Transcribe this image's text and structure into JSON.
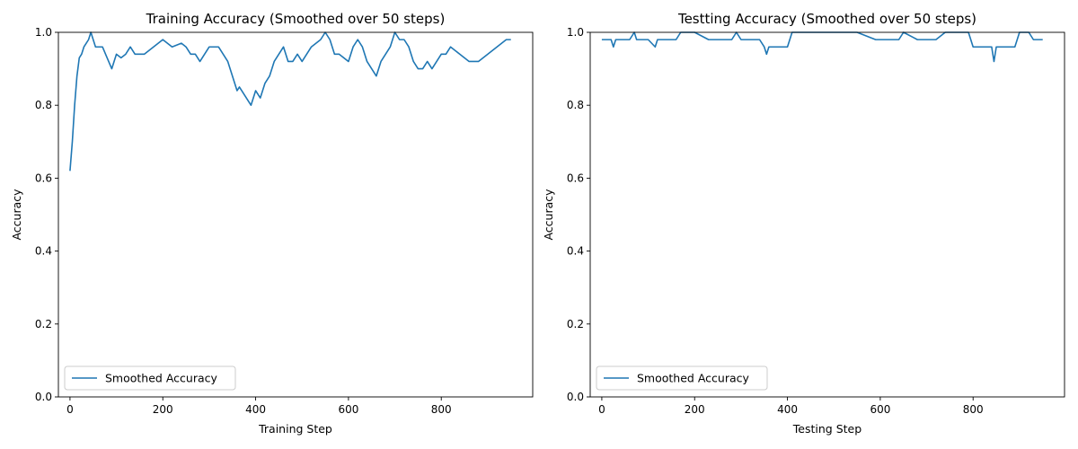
{
  "chart_data": [
    {
      "type": "line",
      "title": "Training Accuracy (Smoothed over 50 steps)",
      "xlabel": "Training Step",
      "ylabel": "Accuracy",
      "xlim": [
        -25,
        997
      ],
      "ylim": [
        0.0,
        1.0
      ],
      "xticks": [
        "0",
        "200",
        "400",
        "600",
        "800"
      ],
      "yticks": [
        "0.0",
        "0.2",
        "0.4",
        "0.6",
        "0.8",
        "1.0"
      ],
      "legend": "lower-left",
      "grid": false,
      "color": "#1f77b4",
      "series": [
        {
          "name": "Smoothed Accuracy",
          "x": [
            0,
            5,
            10,
            15,
            20,
            25,
            30,
            35,
            40,
            45,
            50,
            55,
            60,
            70,
            80,
            90,
            100,
            110,
            120,
            130,
            140,
            160,
            180,
            200,
            220,
            240,
            250,
            260,
            270,
            280,
            290,
            300,
            310,
            320,
            330,
            340,
            350,
            355,
            360,
            365,
            370,
            380,
            390,
            395,
            400,
            410,
            420,
            430,
            440,
            450,
            460,
            470,
            480,
            490,
            500,
            520,
            540,
            550,
            560,
            570,
            580,
            600,
            610,
            620,
            630,
            640,
            650,
            660,
            670,
            680,
            690,
            700,
            710,
            720,
            730,
            740,
            750,
            760,
            770,
            780,
            790,
            800,
            810,
            820,
            840,
            860,
            880,
            900,
            920,
            940,
            950
          ],
          "values": [
            0.62,
            0.7,
            0.8,
            0.88,
            0.93,
            0.94,
            0.96,
            0.97,
            0.98,
            1.0,
            0.98,
            0.96,
            0.96,
            0.96,
            0.93,
            0.9,
            0.94,
            0.93,
            0.94,
            0.96,
            0.94,
            0.94,
            0.96,
            0.98,
            0.96,
            0.97,
            0.96,
            0.94,
            0.94,
            0.92,
            0.94,
            0.96,
            0.96,
            0.96,
            0.94,
            0.92,
            0.88,
            0.86,
            0.84,
            0.85,
            0.84,
            0.82,
            0.8,
            0.82,
            0.84,
            0.82,
            0.86,
            0.88,
            0.92,
            0.94,
            0.96,
            0.92,
            0.92,
            0.94,
            0.92,
            0.96,
            0.98,
            1.0,
            0.98,
            0.94,
            0.94,
            0.92,
            0.96,
            0.98,
            0.96,
            0.92,
            0.9,
            0.88,
            0.92,
            0.94,
            0.96,
            1.0,
            0.98,
            0.98,
            0.96,
            0.92,
            0.9,
            0.9,
            0.92,
            0.9,
            0.92,
            0.94,
            0.94,
            0.96,
            0.94,
            0.92,
            0.92,
            0.94,
            0.96,
            0.98,
            0.98
          ]
        }
      ]
    },
    {
      "type": "line",
      "title": "Testting Accuracy (Smoothed over 50 steps)",
      "xlabel": "Testing Step",
      "ylabel": "Accuracy",
      "xlim": [
        -25,
        997
      ],
      "ylim": [
        0.0,
        1.0
      ],
      "xticks": [
        "0",
        "200",
        "400",
        "600",
        "800"
      ],
      "yticks": [
        "0.0",
        "0.2",
        "0.4",
        "0.6",
        "0.8",
        "1.0"
      ],
      "legend": "lower-left",
      "grid": false,
      "color": "#1f77b4",
      "series": [
        {
          "name": "Smoothed Accuracy",
          "x": [
            0,
            20,
            25,
            30,
            40,
            60,
            70,
            75,
            80,
            100,
            115,
            120,
            125,
            140,
            160,
            170,
            200,
            230,
            260,
            280,
            290,
            300,
            320,
            340,
            350,
            355,
            360,
            380,
            400,
            410,
            450,
            500,
            550,
            590,
            600,
            620,
            640,
            650,
            680,
            700,
            720,
            740,
            760,
            780,
            790,
            800,
            820,
            840,
            845,
            850,
            870,
            890,
            900,
            920,
            930,
            950
          ],
          "values": [
            0.98,
            0.98,
            0.96,
            0.98,
            0.98,
            0.98,
            1.0,
            0.98,
            0.98,
            0.98,
            0.96,
            0.98,
            0.98,
            0.98,
            0.98,
            1.0,
            1.0,
            0.98,
            0.98,
            0.98,
            1.0,
            0.98,
            0.98,
            0.98,
            0.96,
            0.94,
            0.96,
            0.96,
            0.96,
            1.0,
            1.0,
            1.0,
            1.0,
            0.98,
            0.98,
            0.98,
            0.98,
            1.0,
            0.98,
            0.98,
            0.98,
            1.0,
            1.0,
            1.0,
            1.0,
            0.96,
            0.96,
            0.96,
            0.92,
            0.96,
            0.96,
            0.96,
            1.0,
            1.0,
            0.98,
            0.98
          ]
        }
      ]
    }
  ]
}
